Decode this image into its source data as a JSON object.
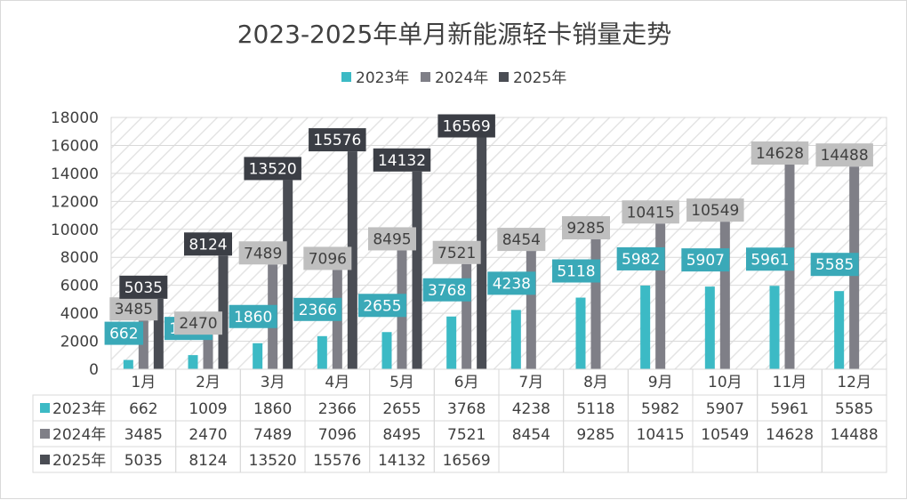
{
  "chart_data": {
    "type": "bar",
    "title": "2023-2025年单月新能源轻卡销量走势",
    "xlabel": "",
    "ylabel": "",
    "ylim": [
      0,
      18000
    ],
    "yticks": [
      0,
      2000,
      4000,
      6000,
      8000,
      10000,
      12000,
      14000,
      16000,
      18000
    ],
    "legend_position": "top",
    "grid": true,
    "data_table": true,
    "categories": [
      "1月",
      "2月",
      "3月",
      "4月",
      "5月",
      "6月",
      "7月",
      "8月",
      "9月",
      "10月",
      "11月",
      "12月"
    ],
    "series": [
      {
        "name": "2023年",
        "color": "#3cbac5",
        "label_bg": "#3aa9b8",
        "label_fg": "#ffffff",
        "values": [
          662,
          1009,
          1860,
          2366,
          2655,
          3768,
          4238,
          5118,
          5982,
          5907,
          5961,
          5585
        ]
      },
      {
        "name": "2024年",
        "color": "#7f7f87",
        "label_bg": "#bfbfbf",
        "label_fg": "#404040",
        "values": [
          3485,
          2470,
          7489,
          7096,
          8495,
          7521,
          8454,
          9285,
          10415,
          10549,
          14628,
          14488
        ]
      },
      {
        "name": "2025年",
        "color": "#4a4d54",
        "label_bg": "#3b3e45",
        "label_fg": "#ffffff",
        "values": [
          5035,
          8124,
          13520,
          15576,
          14132,
          16569,
          null,
          null,
          null,
          null,
          null,
          null
        ]
      }
    ]
  }
}
